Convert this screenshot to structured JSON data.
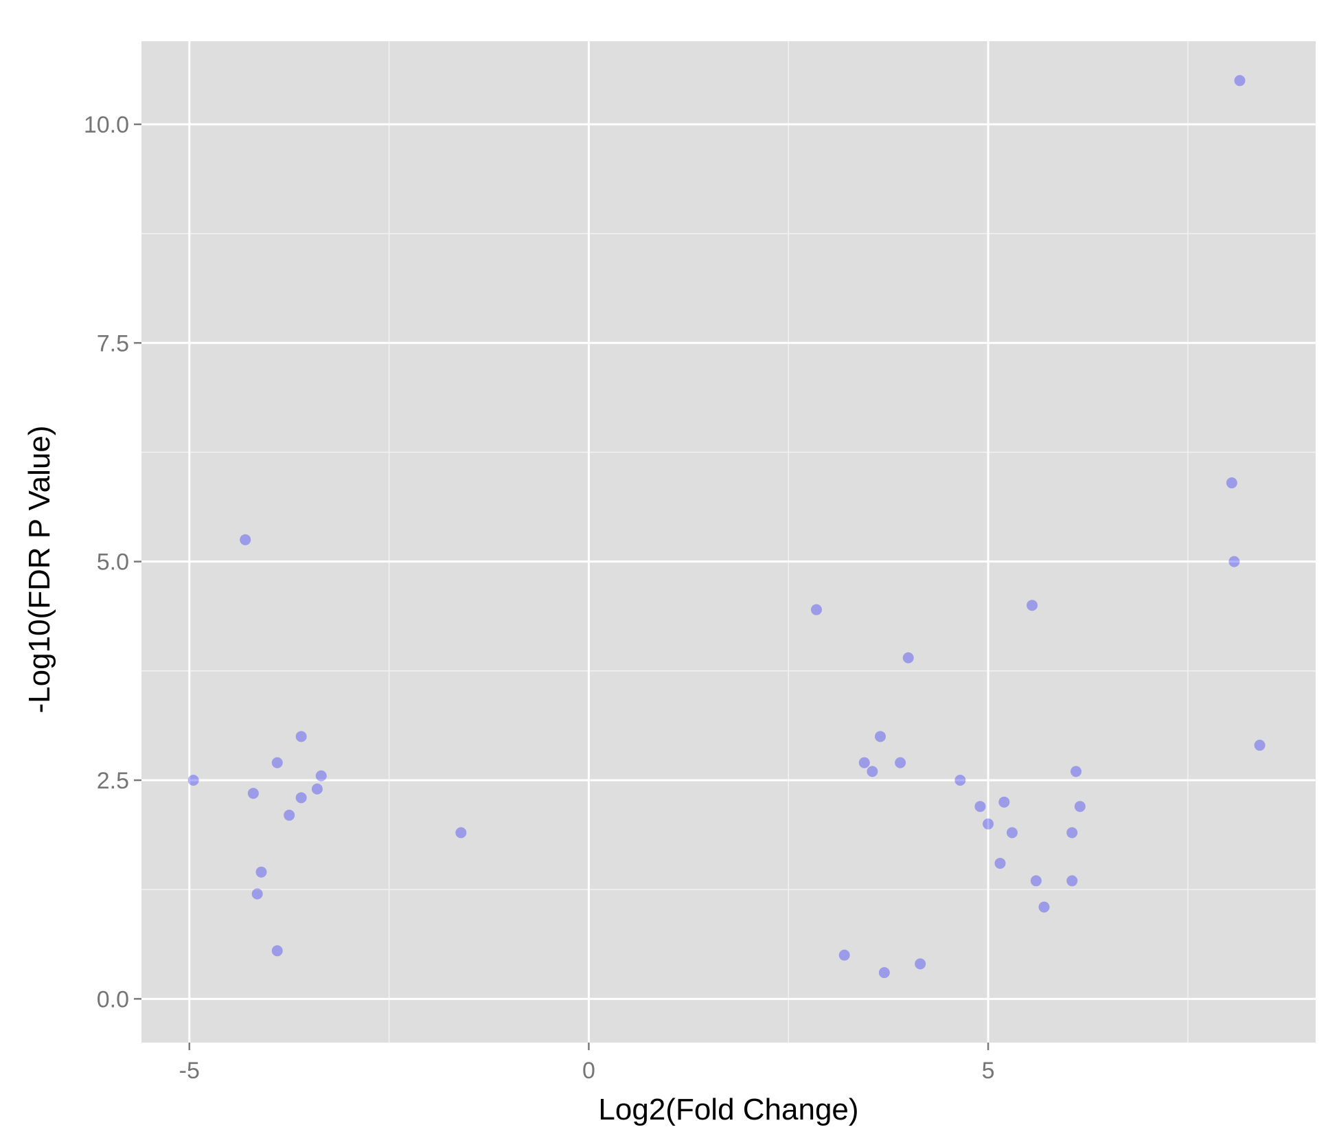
{
  "chart_data": {
    "type": "scatter",
    "title": "",
    "xlabel": "Log2(Fold Change)",
    "ylabel": "-Log10(FDR P Value)",
    "xlim": [
      -5.6,
      9.1
    ],
    "ylim": [
      -0.5,
      10.95
    ],
    "x_ticks": [
      -5,
      0,
      5
    ],
    "x_tick_labels": [
      "-5",
      "0",
      "5"
    ],
    "y_ticks": [
      0,
      2.5,
      5,
      7.5,
      10
    ],
    "y_tick_labels": [
      "0.0",
      "2.5",
      "5.0",
      "7.5",
      "10.0"
    ],
    "x_minor_ticks": [
      -2.5,
      2.5,
      7.5
    ],
    "y_minor_ticks": [
      1.25,
      3.75,
      6.25,
      8.75
    ],
    "grid": true,
    "point_color": "#0000ff",
    "panel_background": "#dedede",
    "series": [
      {
        "values": [
          {
            "x": 8.15,
            "y": 10.5
          },
          {
            "x": 8.05,
            "y": 5.9
          },
          {
            "x": 8.08,
            "y": 5.0
          },
          {
            "x": 8.4,
            "y": 2.9
          },
          {
            "x": 5.55,
            "y": 4.5
          },
          {
            "x": 2.85,
            "y": 4.45
          },
          {
            "x": 4.0,
            "y": 3.9
          },
          {
            "x": -4.3,
            "y": 5.25
          },
          {
            "x": -4.95,
            "y": 2.5
          },
          {
            "x": -3.6,
            "y": 3.0
          },
          {
            "x": -3.9,
            "y": 2.7
          },
          {
            "x": -4.2,
            "y": 2.35
          },
          {
            "x": -3.35,
            "y": 2.55
          },
          {
            "x": -3.6,
            "y": 2.3
          },
          {
            "x": -3.4,
            "y": 2.4
          },
          {
            "x": -3.75,
            "y": 2.1
          },
          {
            "x": -4.1,
            "y": 1.45
          },
          {
            "x": -4.15,
            "y": 1.2
          },
          {
            "x": -3.9,
            "y": 0.55
          },
          {
            "x": -1.6,
            "y": 1.9
          },
          {
            "x": 3.65,
            "y": 3.0
          },
          {
            "x": 3.45,
            "y": 2.7
          },
          {
            "x": 3.9,
            "y": 2.7
          },
          {
            "x": 3.55,
            "y": 2.6
          },
          {
            "x": 4.65,
            "y": 2.5
          },
          {
            "x": 5.2,
            "y": 2.25
          },
          {
            "x": 6.1,
            "y": 2.6
          },
          {
            "x": 6.15,
            "y": 2.2
          },
          {
            "x": 6.05,
            "y": 1.9
          },
          {
            "x": 6.05,
            "y": 1.35
          },
          {
            "x": 5.6,
            "y": 1.35
          },
          {
            "x": 5.7,
            "y": 1.05
          },
          {
            "x": 5.3,
            "y": 1.9
          },
          {
            "x": 5.0,
            "y": 2.0
          },
          {
            "x": 5.15,
            "y": 1.55
          },
          {
            "x": 4.9,
            "y": 2.2
          },
          {
            "x": 3.2,
            "y": 0.5
          },
          {
            "x": 3.7,
            "y": 0.3
          },
          {
            "x": 4.15,
            "y": 0.4
          }
        ]
      }
    ]
  }
}
